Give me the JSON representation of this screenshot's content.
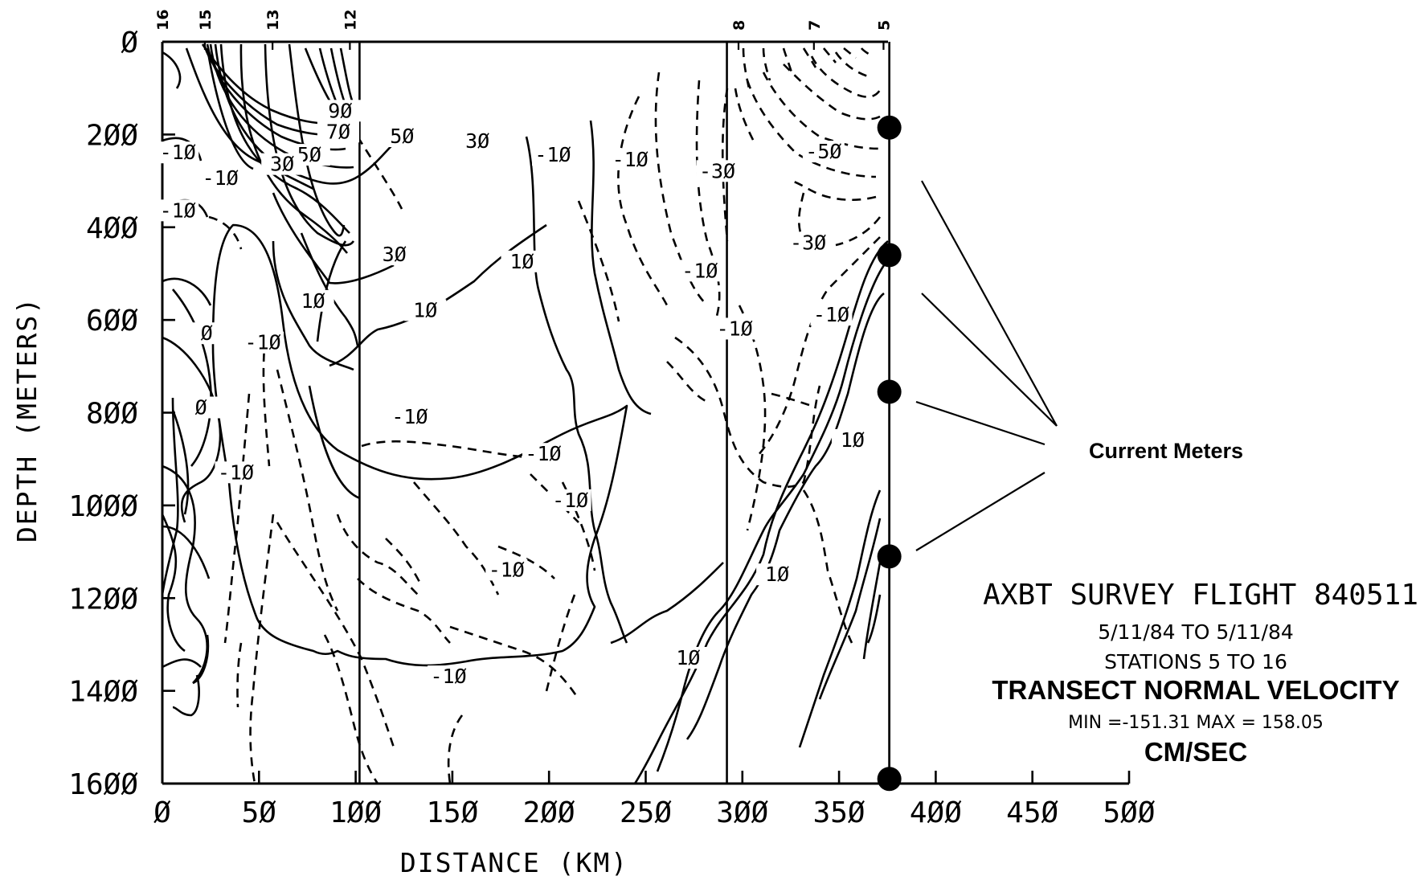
{
  "chart_data": {
    "type": "contour",
    "xlabel": "DISTANCE (KM)",
    "ylabel": "DEPTH (METERS)",
    "xlim": [
      0,
      500
    ],
    "ylim": [
      1600,
      0
    ],
    "y_inverted": true,
    "x_ticks": [
      0,
      50,
      100,
      150,
      200,
      250,
      300,
      350,
      400,
      450,
      500
    ],
    "x_tick_labels": [
      "Ø",
      "5Ø",
      "1ØØ",
      "15Ø",
      "2ØØ",
      "25Ø",
      "3ØØ",
      "35Ø",
      "4ØØ",
      "45Ø",
      "5ØØ"
    ],
    "y_ticks": [
      0,
      200,
      400,
      600,
      800,
      1000,
      1200,
      1400,
      1600
    ],
    "y_tick_labels": [
      "Ø",
      "2ØØ",
      "4ØØ",
      "6ØØ",
      "8ØØ",
      "1ØØØ",
      "12ØØ",
      "14ØØ",
      "16ØØ"
    ],
    "stations": [
      {
        "label": "16",
        "x": 0
      },
      {
        "label": "15",
        "x": 22
      },
      {
        "label": "13",
        "x": 57
      },
      {
        "label": "12",
        "x": 97
      },
      {
        "label": "8",
        "x": 298
      },
      {
        "label": "7",
        "x": 337
      },
      {
        "label": "5",
        "x": 373
      }
    ],
    "station_lines_km": [
      102,
      292,
      376
    ],
    "contour_labels": [
      {
        "text": "9Ø",
        "x": 92,
        "y": 160
      },
      {
        "text": "7Ø",
        "x": 91,
        "y": 205
      },
      {
        "text": "5Ø",
        "x": 76,
        "y": 255
      },
      {
        "text": "3Ø",
        "x": 62,
        "y": 275
      },
      {
        "text": "-1Ø",
        "x": 30,
        "y": 305
      },
      {
        "text": "-1Ø",
        "x": 8,
        "y": 250
      },
      {
        "text": "-1Ø",
        "x": 8,
        "y": 375
      },
      {
        "text": "5Ø",
        "x": 124,
        "y": 215
      },
      {
        "text": "3Ø",
        "x": 163,
        "y": 225
      },
      {
        "text": "-1Ø",
        "x": 202,
        "y": 255
      },
      {
        "text": "-1Ø",
        "x": 242,
        "y": 265
      },
      {
        "text": "-3Ø",
        "x": 287,
        "y": 290
      },
      {
        "text": "-5Ø",
        "x": 342,
        "y": 248
      },
      {
        "text": "3Ø",
        "x": 120,
        "y": 470
      },
      {
        "text": "1Ø",
        "x": 186,
        "y": 485
      },
      {
        "text": "-3Ø",
        "x": 334,
        "y": 445
      },
      {
        "text": "1Ø",
        "x": 78,
        "y": 570
      },
      {
        "text": "1Ø",
        "x": 136,
        "y": 590
      },
      {
        "text": "-1Ø",
        "x": 278,
        "y": 505
      },
      {
        "text": "-1Ø",
        "x": 346,
        "y": 600
      },
      {
        "text": "-1Ø",
        "x": 296,
        "y": 630
      },
      {
        "text": "Ø",
        "x": 23,
        "y": 640
      },
      {
        "text": "-1Ø",
        "x": 52,
        "y": 660
      },
      {
        "text": "Ø",
        "x": 20,
        "y": 800
      },
      {
        "text": "-1Ø",
        "x": 128,
        "y": 820
      },
      {
        "text": "-1Ø",
        "x": 197,
        "y": 900
      },
      {
        "text": "1Ø",
        "x": 357,
        "y": 870
      },
      {
        "text": "-1Ø",
        "x": 38,
        "y": 940
      },
      {
        "text": "-1Ø",
        "x": 211,
        "y": 1000
      },
      {
        "text": "-1Ø",
        "x": 178,
        "y": 1150
      },
      {
        "text": "1Ø",
        "x": 318,
        "y": 1160
      },
      {
        "text": "1Ø",
        "x": 272,
        "y": 1340
      },
      {
        "text": "-1Ø",
        "x": 148,
        "y": 1380
      }
    ],
    "current_meters_depth_m": [
      185,
      460,
      755,
      1110,
      1590
    ],
    "current_meters_x_km": 376
  },
  "annotations": {
    "current_meters": "Current Meters",
    "survey_title": "AXBT SURVEY FLIGHT 840511",
    "date_range": "5/11/84 TO  5/11/84",
    "stations_range": "STATIONS   5 TO  16",
    "variable": "TRANSECT NORMAL VELOCITY",
    "min_max": "MIN =-151.31 MAX = 158.05",
    "units": "CM/SEC"
  }
}
